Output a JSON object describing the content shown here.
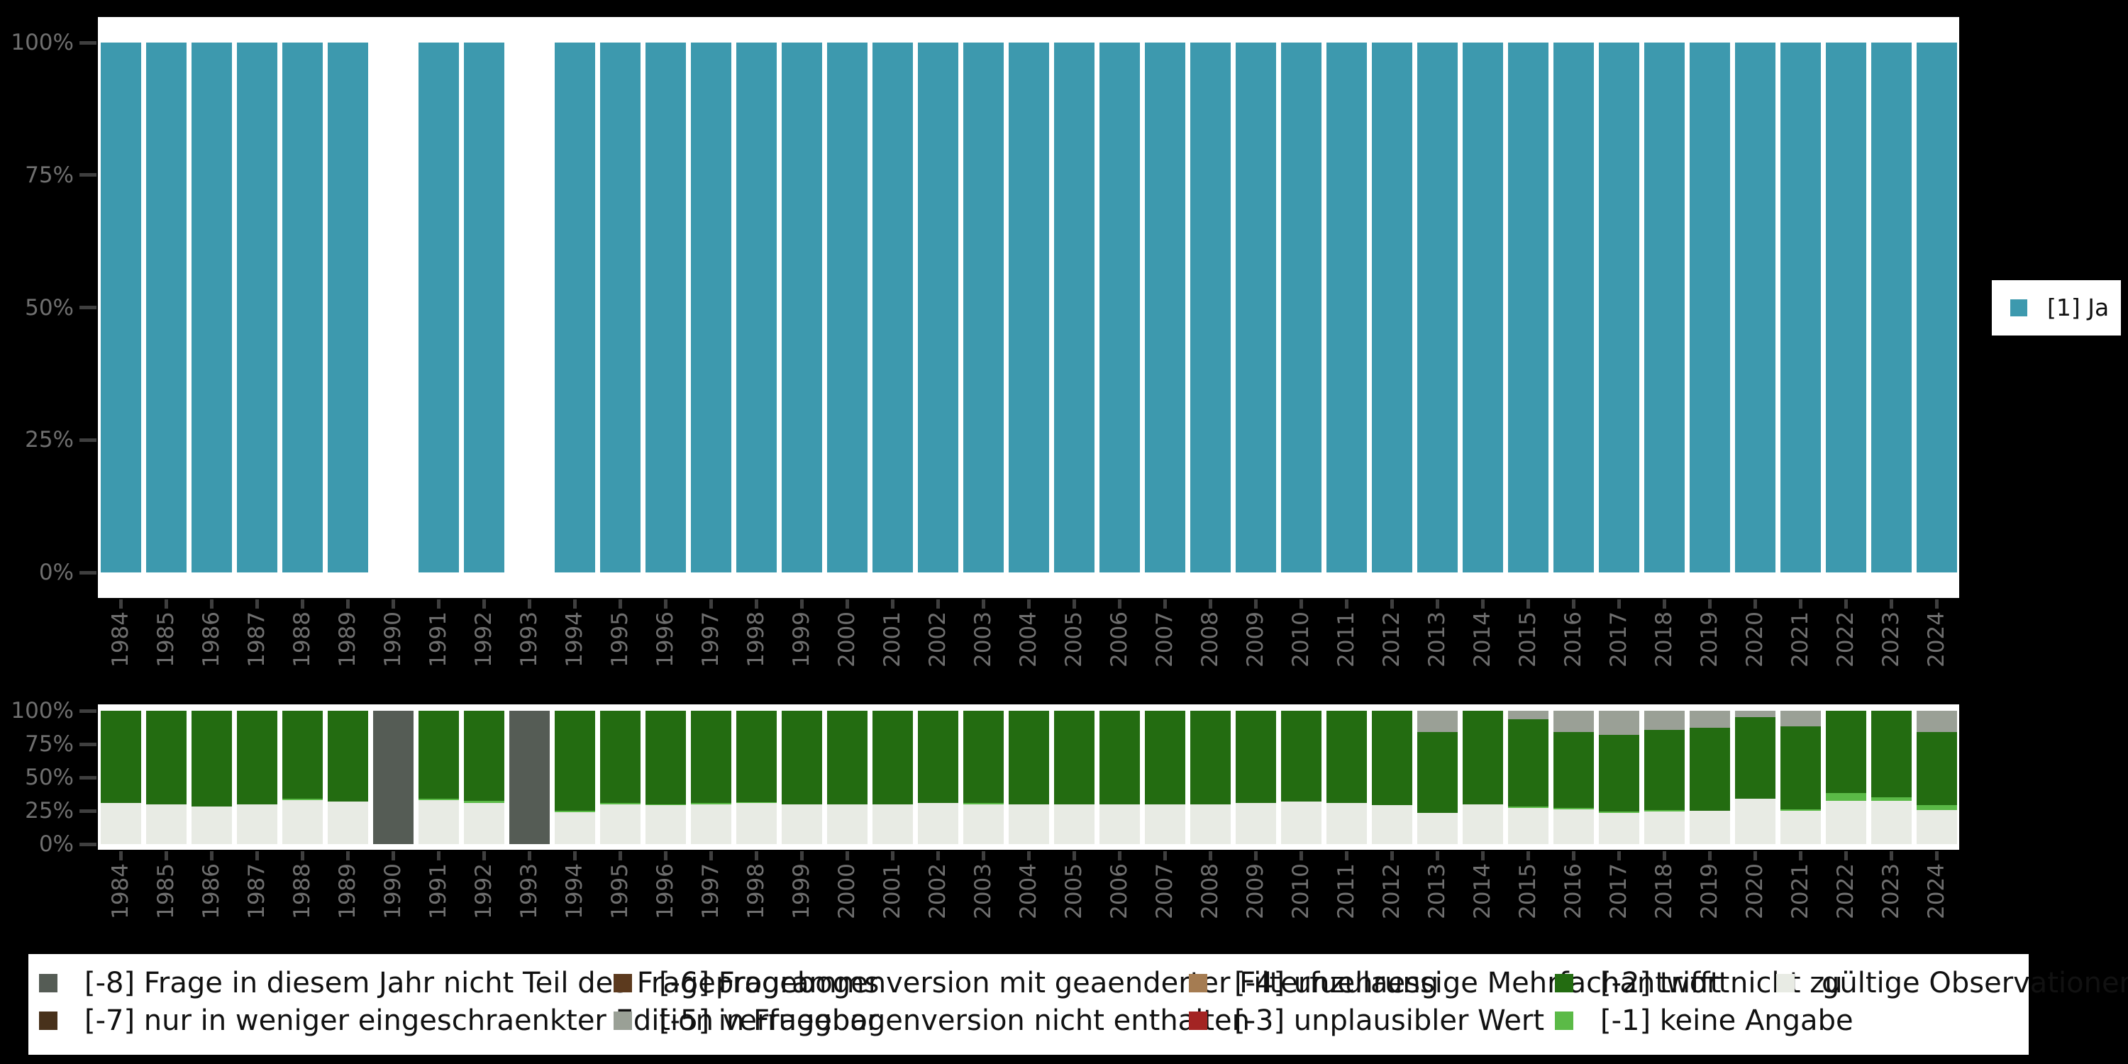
{
  "colors": {
    "background": "#000000",
    "panel": "#ffffff",
    "axis_label": "#6f6f6f",
    "axis_tick": "#3f3f3f",
    "legend_text": "#111111"
  },
  "chart_data": [
    {
      "type": "bar",
      "stacked": true,
      "title": "",
      "xlabel": "",
      "ylabel": "",
      "ylim": [
        0,
        100
      ],
      "grid": false,
      "y_ticks": [
        "100%",
        "75%",
        "50%",
        "25%",
        "0%"
      ],
      "categories": [
        "1984",
        "1985",
        "1986",
        "1987",
        "1988",
        "1989",
        "1990",
        "1991",
        "1992",
        "1993",
        "1994",
        "1995",
        "1996",
        "1997",
        "1998",
        "1999",
        "2000",
        "2001",
        "2002",
        "2003",
        "2004",
        "2005",
        "2006",
        "2007",
        "2008",
        "2009",
        "2010",
        "2011",
        "2012",
        "2013",
        "2014",
        "2015",
        "2016",
        "2017",
        "2018",
        "2019",
        "2020",
        "2021",
        "2022",
        "2023",
        "2024"
      ],
      "series": [
        {
          "name": "[1] Ja",
          "color": "#3d99ae",
          "values": [
            100,
            100,
            100,
            100,
            100,
            100,
            0,
            100,
            100,
            0,
            100,
            100,
            100,
            100,
            100,
            100,
            100,
            100,
            100,
            100,
            100,
            100,
            100,
            100,
            100,
            100,
            100,
            100,
            100,
            100,
            100,
            100,
            100,
            100,
            100,
            100,
            100,
            100,
            100,
            100,
            100
          ]
        }
      ],
      "legend": {
        "position": "right",
        "items": [
          {
            "label": "[1] Ja",
            "color": "#3d99ae"
          }
        ]
      }
    },
    {
      "type": "bar",
      "stacked": true,
      "title": "",
      "xlabel": "",
      "ylabel": "",
      "ylim": [
        0,
        100
      ],
      "grid": false,
      "y_ticks": [
        "100%",
        "75%",
        "50%",
        "25%",
        "0%"
      ],
      "categories": [
        "1984",
        "1985",
        "1986",
        "1987",
        "1988",
        "1989",
        "1990",
        "1991",
        "1992",
        "1993",
        "1994",
        "1995",
        "1996",
        "1997",
        "1998",
        "1999",
        "2000",
        "2001",
        "2002",
        "2003",
        "2004",
        "2005",
        "2006",
        "2007",
        "2008",
        "2009",
        "2010",
        "2011",
        "2012",
        "2013",
        "2014",
        "2015",
        "2016",
        "2017",
        "2018",
        "2019",
        "2020",
        "2021",
        "2022",
        "2023",
        "2024"
      ],
      "series": [
        {
          "name": "gültige Observationen",
          "color": "#e8ebe4",
          "values": [
            31,
            30,
            28,
            30,
            33,
            32,
            0,
            33,
            31,
            0,
            24,
            30,
            29,
            30,
            31,
            30,
            30,
            30,
            31,
            30,
            30,
            30,
            30,
            30,
            30,
            31,
            32,
            31,
            29,
            23.5,
            30,
            27,
            26,
            23.5,
            24.5,
            25,
            34,
            25,
            32.5,
            32.5,
            25.5
          ]
        },
        {
          "name": "[-1] keine Angabe",
          "color": "#5bba47",
          "values": [
            0,
            0,
            0,
            0,
            1,
            0,
            0,
            1,
            1.5,
            0,
            1,
            1,
            1,
            1,
            0.5,
            0,
            0,
            0,
            0,
            1,
            0,
            0,
            0,
            0,
            0,
            0,
            0,
            0,
            0,
            0,
            0,
            1,
            1,
            1,
            1,
            0,
            0,
            1,
            6,
            2.5,
            3.5
          ]
        },
        {
          "name": "[-2] trifft nicht zu",
          "color": "#236c11",
          "values": [
            69,
            70,
            72,
            70,
            66,
            68,
            0,
            66,
            67.5,
            0,
            75,
            69,
            70,
            69,
            68.5,
            70,
            70,
            70,
            69,
            69,
            70,
            70,
            70,
            70,
            70,
            69,
            68,
            69,
            71,
            60.5,
            70,
            65.5,
            57,
            57.5,
            60,
            62,
            61,
            62.5,
            61.5,
            65,
            55
          ]
        },
        {
          "name": "[-5] in Fragebogenversion nicht enthalten",
          "color": "#9aa096",
          "values": [
            0,
            0,
            0,
            0,
            0,
            0,
            0,
            0,
            0,
            0,
            0,
            0,
            0,
            0,
            0,
            0,
            0,
            0,
            0,
            0,
            0,
            0,
            0,
            0,
            0,
            0,
            0,
            0,
            0,
            16,
            0,
            6.5,
            16,
            18,
            14.5,
            13,
            5,
            11.5,
            0,
            0,
            16
          ]
        },
        {
          "name": "[-8] Frage in diesem Jahr nicht Teil des Frageprogramms",
          "color": "#555c55",
          "values": [
            0,
            0,
            0,
            0,
            0,
            0,
            100,
            0,
            0,
            100,
            0,
            0,
            0,
            0,
            0,
            0,
            0,
            0,
            0,
            0,
            0,
            0,
            0,
            0,
            0,
            0,
            0,
            0,
            0,
            0,
            0,
            0,
            0,
            0,
            0,
            0,
            0,
            0,
            0,
            0,
            0
          ]
        }
      ],
      "legend": {
        "position": "bottom"
      }
    }
  ],
  "legend_top": {
    "items": [
      {
        "label": "[1] Ja",
        "color": "#3d99ae"
      }
    ]
  },
  "legend_bottom": {
    "items": [
      {
        "label": "[-8] Frage in diesem Jahr nicht Teil des Frageprogramms",
        "color": "#555c55"
      },
      {
        "label": "[-7] nur in weniger eingeschraenkter Edition verfuegbar",
        "color": "#48311b"
      },
      {
        "label": "[-6] Fragebogenversion mit geaenderter Filterfuehrung",
        "color": "#5c3a1e"
      },
      {
        "label": "[-5] in Fragebogenversion nicht enthalten",
        "color": "#9aa096"
      },
      {
        "label": "[-4] unzulaessige Mehrfachantwort",
        "color": "#a57c52"
      },
      {
        "label": "[-3] unplausibler Wert",
        "color": "#a32423"
      },
      {
        "label": "[-2] trifft nicht zu",
        "color": "#236c11"
      },
      {
        "label": "[-1] keine Angabe",
        "color": "#5bba47"
      },
      {
        "label": "gültige Observationen",
        "color": "#e8ebe4"
      }
    ]
  }
}
